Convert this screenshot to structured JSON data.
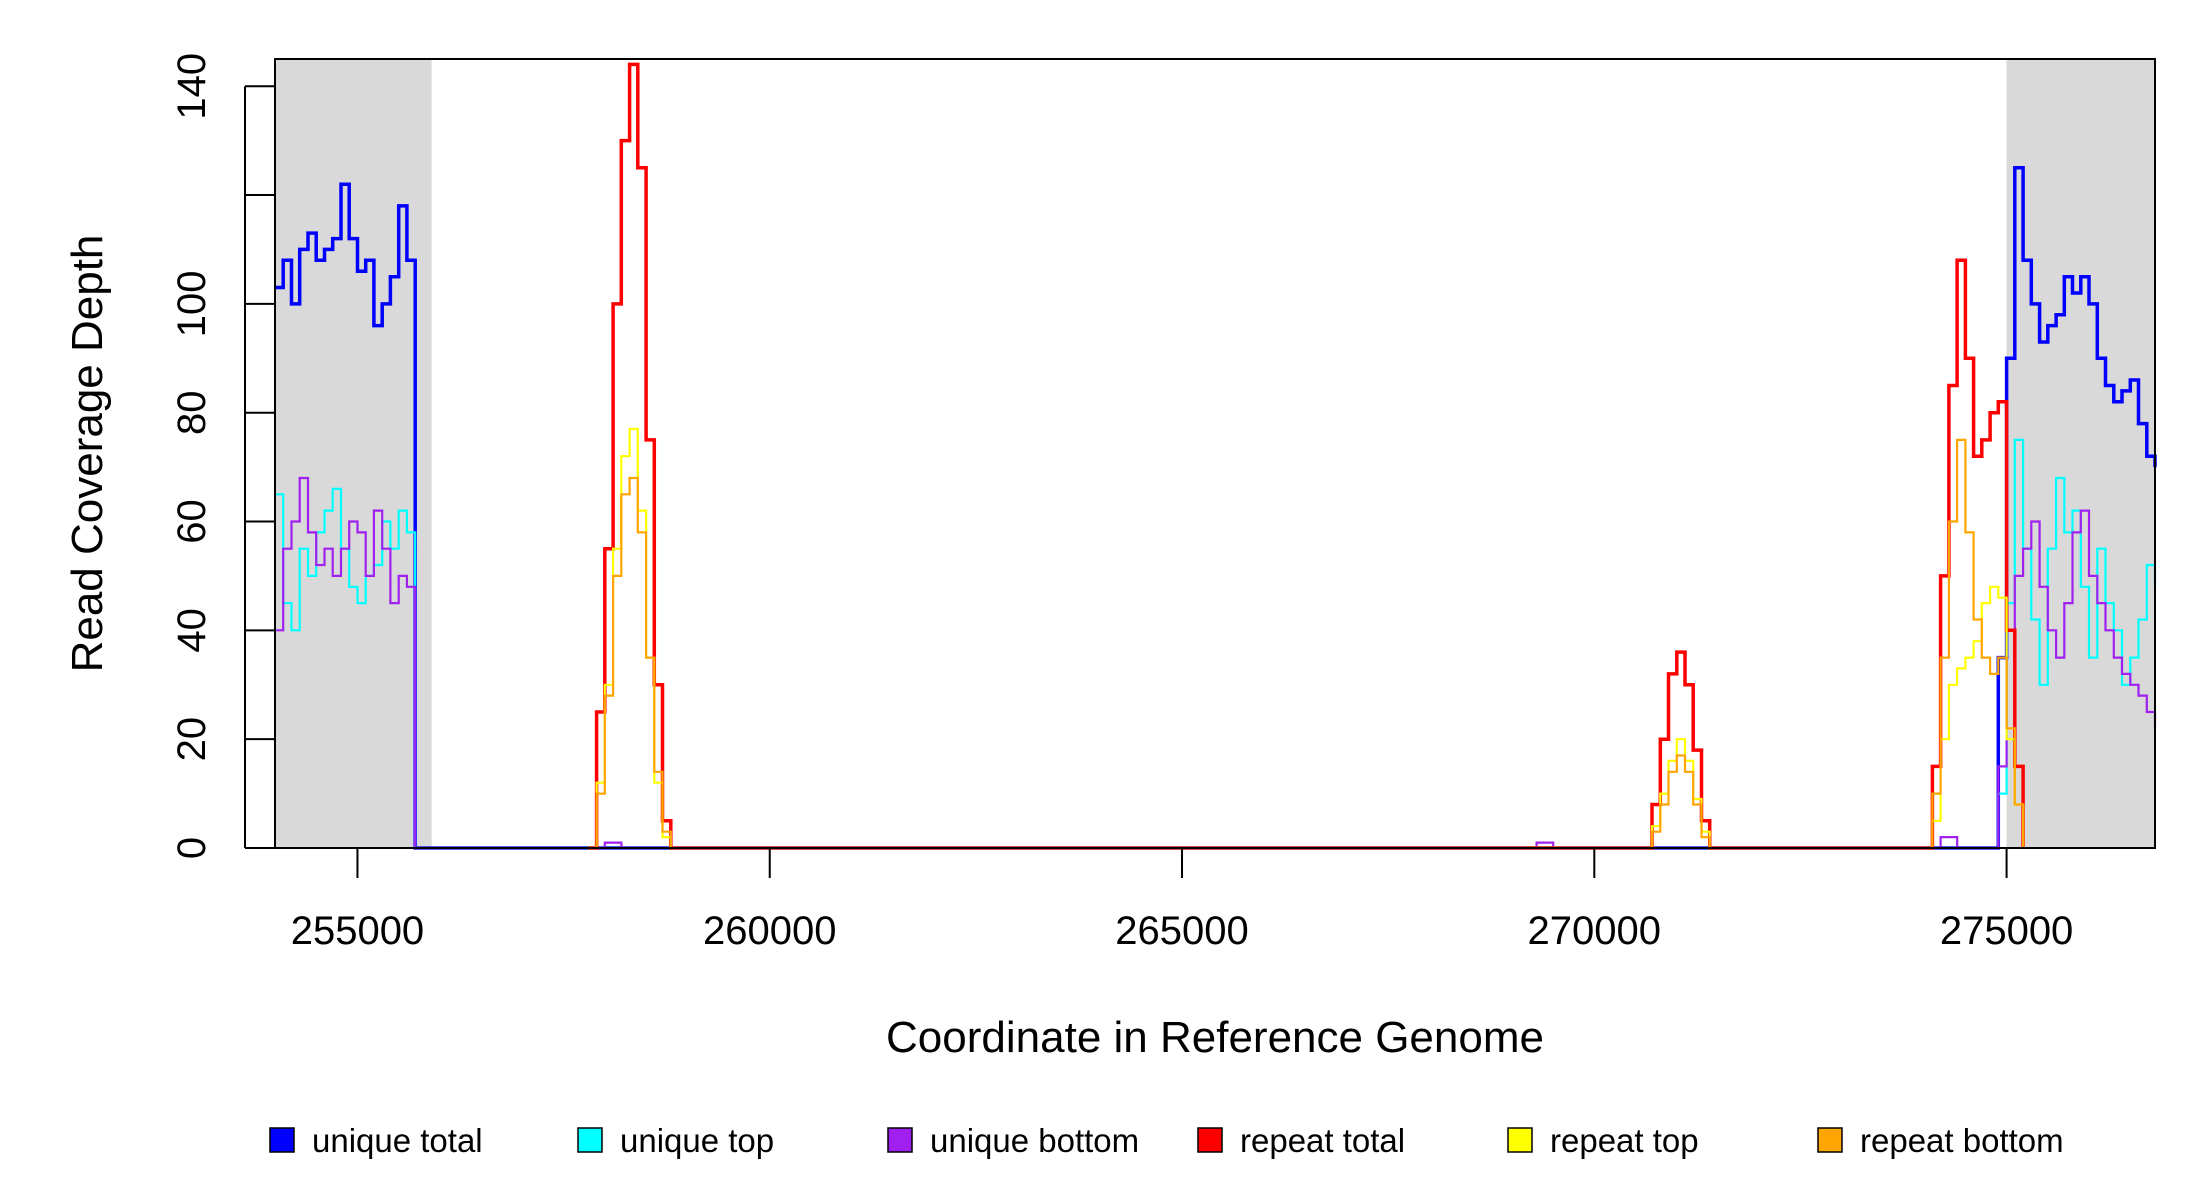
{
  "chart_data": {
    "type": "line",
    "title": "",
    "xlabel": "Coordinate in Reference Genome",
    "ylabel": "Read Coverage Depth",
    "xlim": [
      254000,
      276800
    ],
    "ylim": [
      0,
      145
    ],
    "x_ticks": [
      255000,
      260000,
      265000,
      270000,
      275000
    ],
    "x_tick_labels": [
      "255000",
      "260000",
      "265000",
      "270000",
      "275000"
    ],
    "y_ticks": [
      0,
      20,
      40,
      60,
      80,
      100,
      120,
      140
    ],
    "y_tick_labels": [
      "0",
      "20",
      "40",
      "60",
      "80",
      "100",
      "",
      "140"
    ],
    "shaded_regions": [
      [
        254000,
        255900
      ],
      [
        275000,
        276800
      ]
    ],
    "shade_color": "#d9d9d9",
    "grid": false,
    "legend_position": "bottom",
    "series": [
      {
        "name": "unique total",
        "color": "#0000ff",
        "x": [
          254000,
          254100,
          254200,
          254300,
          254400,
          254500,
          254600,
          254700,
          254800,
          254900,
          255000,
          255100,
          255200,
          255300,
          255400,
          255500,
          255600,
          255700,
          255800,
          255900,
          255901,
          274800,
          274900,
          275000,
          275100,
          275200,
          275300,
          275400,
          275500,
          275600,
          275700,
          275800,
          275900,
          276000,
          276100,
          276200,
          276300,
          276400,
          276500,
          276600,
          276700,
          276800
        ],
        "values": [
          103,
          108,
          100,
          110,
          113,
          108,
          110,
          112,
          122,
          112,
          106,
          108,
          96,
          100,
          105,
          118,
          108,
          0,
          0,
          0,
          0,
          0,
          35,
          90,
          125,
          108,
          100,
          93,
          96,
          98,
          105,
          102,
          105,
          100,
          90,
          85,
          82,
          84,
          86,
          78,
          72,
          70
        ]
      },
      {
        "name": "unique top",
        "color": "#00ffff",
        "x": [
          254000,
          254100,
          254200,
          254300,
          254400,
          254500,
          254600,
          254700,
          254800,
          254900,
          255000,
          255100,
          255200,
          255300,
          255400,
          255500,
          255600,
          255700,
          255800,
          255900,
          255901,
          274800,
          274900,
          275000,
          275100,
          275200,
          275300,
          275400,
          275500,
          275600,
          275700,
          275800,
          275900,
          276000,
          276100,
          276200,
          276300,
          276400,
          276500,
          276600,
          276700,
          276800
        ],
        "values": [
          65,
          45,
          40,
          55,
          50,
          58,
          62,
          66,
          55,
          48,
          45,
          50,
          52,
          60,
          55,
          62,
          58,
          0,
          0,
          0,
          0,
          0,
          10,
          45,
          75,
          55,
          42,
          30,
          55,
          68,
          58,
          62,
          48,
          35,
          55,
          45,
          40,
          30,
          35,
          42,
          52,
          48
        ]
      },
      {
        "name": "unique bottom",
        "color": "#a020f0",
        "x": [
          254000,
          254100,
          254200,
          254300,
          254400,
          254500,
          254600,
          254700,
          254800,
          254900,
          255000,
          255100,
          255200,
          255300,
          255400,
          255500,
          255600,
          255700,
          255800,
          255900,
          255901,
          257900,
          258000,
          258200,
          258201,
          269200,
          269300,
          269500,
          269501,
          274100,
          274200,
          274400,
          274401,
          274800,
          274900,
          275000,
          275100,
          275200,
          275300,
          275400,
          275500,
          275600,
          275700,
          275800,
          275900,
          276000,
          276100,
          276200,
          276300,
          276400,
          276500,
          276600,
          276700,
          276800
        ],
        "values": [
          40,
          55,
          60,
          68,
          58,
          52,
          55,
          50,
          55,
          60,
          58,
          50,
          62,
          55,
          45,
          50,
          48,
          0,
          0,
          0,
          0,
          0,
          1,
          1,
          0,
          0,
          1,
          1,
          0,
          0,
          2,
          2,
          0,
          0,
          15,
          40,
          50,
          55,
          60,
          48,
          40,
          35,
          45,
          58,
          62,
          50,
          45,
          40,
          35,
          32,
          30,
          28,
          25,
          22
        ]
      },
      {
        "name": "repeat total",
        "color": "#ff0000",
        "x": [
          257800,
          257900,
          258000,
          258100,
          258200,
          258300,
          258400,
          258500,
          258600,
          258700,
          258800,
          270600,
          270700,
          270800,
          270900,
          271000,
          271100,
          271200,
          271300,
          271400,
          274100,
          274200,
          274300,
          274400,
          274500,
          274600,
          274700,
          274800,
          274900,
          275000,
          275100,
          275200
        ],
        "values": [
          0,
          25,
          55,
          100,
          130,
          144,
          125,
          75,
          30,
          5,
          0,
          0,
          8,
          20,
          32,
          36,
          30,
          18,
          5,
          0,
          15,
          50,
          85,
          108,
          90,
          72,
          75,
          80,
          82,
          40,
          15,
          0
        ]
      },
      {
        "name": "repeat top",
        "color": "#ffff00",
        "x": [
          257800,
          257900,
          258000,
          258100,
          258200,
          258300,
          258400,
          258500,
          258600,
          258700,
          258800,
          270600,
          270700,
          270800,
          270900,
          271000,
          271100,
          271200,
          271300,
          271400,
          274100,
          274200,
          274300,
          274400,
          274500,
          274600,
          274700,
          274800,
          274900,
          275000,
          275100,
          275200
        ],
        "values": [
          0,
          12,
          30,
          55,
          72,
          77,
          62,
          35,
          12,
          2,
          0,
          0,
          4,
          10,
          16,
          20,
          16,
          9,
          3,
          0,
          5,
          20,
          30,
          33,
          35,
          38,
          45,
          48,
          46,
          20,
          8,
          0
        ]
      },
      {
        "name": "repeat bottom",
        "color": "#ffa500",
        "x": [
          257800,
          257900,
          258000,
          258100,
          258200,
          258300,
          258400,
          258500,
          258600,
          258700,
          258800,
          270600,
          270700,
          270800,
          270900,
          271000,
          271100,
          271200,
          271300,
          271400,
          274100,
          274200,
          274300,
          274400,
          274500,
          274600,
          274700,
          274800,
          274900,
          275000,
          275100,
          275200
        ],
        "values": [
          0,
          10,
          28,
          50,
          65,
          68,
          58,
          35,
          14,
          3,
          0,
          0,
          3,
          8,
          14,
          17,
          14,
          8,
          2,
          0,
          10,
          35,
          60,
          75,
          58,
          42,
          35,
          32,
          35,
          22,
          8,
          0
        ]
      }
    ]
  }
}
